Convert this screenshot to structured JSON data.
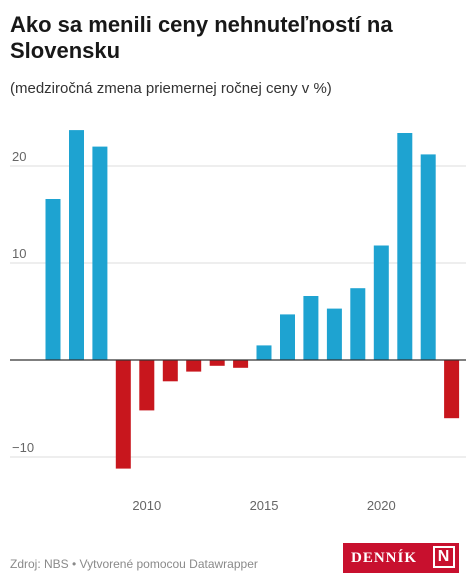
{
  "title": "Ako sa menili ceny nehnuteľností na Slovensku",
  "subtitle": "(medziročná zmena priemernej ročnej ceny v %)",
  "footer": "Zdroj: NBS • Vytvorené pomocou Datawrapper",
  "logo": {
    "text": "DENNÍK",
    "mark": "N"
  },
  "colors": {
    "positive": "#1ea3d1",
    "negative": "#c8161d",
    "axis": "#333333",
    "grid": "#dddddd"
  },
  "chart_data": {
    "type": "bar",
    "x": [
      2006,
      2007,
      2008,
      2009,
      2010,
      2011,
      2012,
      2013,
      2014,
      2015,
      2016,
      2017,
      2018,
      2019,
      2020,
      2021,
      2022,
      2023
    ],
    "values": [
      16.6,
      23.7,
      22.0,
      -11.2,
      -5.2,
      -2.2,
      -1.2,
      -0.6,
      -0.8,
      1.5,
      4.7,
      6.6,
      5.3,
      7.4,
      11.8,
      23.4,
      21.2,
      -6.0
    ],
    "y_ticks": [
      -10,
      10,
      20
    ],
    "y_tick_labels": [
      "−10",
      "10",
      "20"
    ],
    "x_ticks": [
      2010,
      2015,
      2020
    ],
    "x_tick_labels": [
      "2010",
      "2015",
      "2020"
    ],
    "ylim": [
      -12,
      25
    ],
    "grid": true,
    "legend": "none"
  }
}
